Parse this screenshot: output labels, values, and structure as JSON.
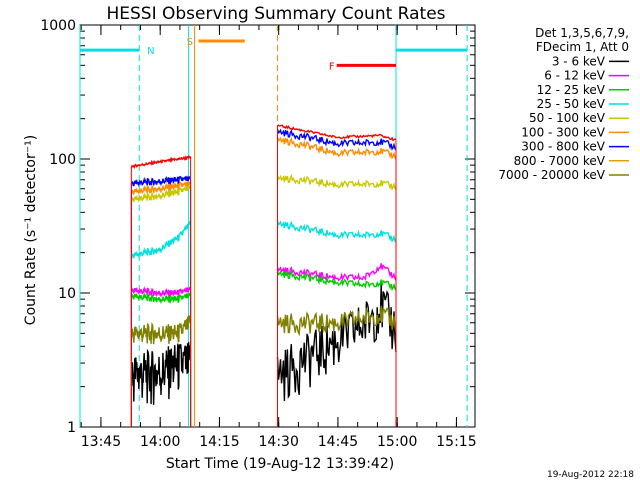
{
  "chart_data": {
    "type": "line",
    "title": "HESSI Observing Summary Count Rates",
    "xlabel": "Start Time (19-Aug-12 13:39:42)",
    "ylabel": "Count Rate (s⁻¹ detector⁻¹)",
    "x_unit": "minutes after 13:39:42",
    "xlim": [
      0,
      100
    ],
    "ylim": [
      1,
      1000
    ],
    "y_scale": "log",
    "x_ticks": [
      {
        "label": "13:45",
        "x": 5.3
      },
      {
        "label": "14:00",
        "x": 20.3
      },
      {
        "label": "14:15",
        "x": 35.3
      },
      {
        "label": "14:30",
        "x": 50.3
      },
      {
        "label": "14:45",
        "x": 65.3
      },
      {
        "label": "15:00",
        "x": 80.3
      },
      {
        "label": "15:15",
        "x": 95.3
      }
    ],
    "y_ticks": [
      {
        "label": "1",
        "y": 1
      },
      {
        "label": "10",
        "y": 10
      },
      {
        "label": "100",
        "y": 100
      },
      {
        "label": "1000",
        "y": 1000
      }
    ],
    "legend": {
      "header": [
        "Det 1,3,5,6,7,9,",
        "FDecim 1, Att 0"
      ],
      "placement": "right"
    },
    "segments": [
      [
        13,
        28
      ],
      [
        50,
        80
      ]
    ],
    "series": [
      {
        "name": "3 - 6 keV",
        "color": "#000000",
        "values": [
          [
            13,
            2.5
          ],
          [
            20,
            2.6
          ],
          [
            25,
            3.0
          ],
          [
            28,
            3.0
          ],
          [
            50,
            2.5
          ],
          [
            58,
            3.5
          ],
          [
            65,
            4.5
          ],
          [
            72,
            6.0
          ],
          [
            76,
            8.5
          ],
          [
            80,
            5.5
          ]
        ]
      },
      {
        "name": "6 - 12 keV",
        "color": "#ff00ff",
        "values": [
          [
            13,
            10.5
          ],
          [
            20,
            10.0
          ],
          [
            25,
            10.0
          ],
          [
            28,
            10.5
          ],
          [
            50,
            15.0
          ],
          [
            58,
            14.0
          ],
          [
            65,
            13.0
          ],
          [
            72,
            13.0
          ],
          [
            76,
            16.0
          ],
          [
            80,
            13.0
          ]
        ]
      },
      {
        "name": "12 - 25 keV",
        "color": "#00cc00",
        "values": [
          [
            13,
            9.5
          ],
          [
            20,
            9.0
          ],
          [
            25,
            9.0
          ],
          [
            28,
            9.5
          ],
          [
            50,
            14.0
          ],
          [
            58,
            13.0
          ],
          [
            65,
            12.0
          ],
          [
            72,
            11.5
          ],
          [
            76,
            12.0
          ],
          [
            80,
            11.0
          ]
        ]
      },
      {
        "name": "25 - 50 keV",
        "color": "#00e0e0",
        "values": [
          [
            13,
            19.0
          ],
          [
            20,
            21.0
          ],
          [
            25,
            26.0
          ],
          [
            28,
            33.0
          ],
          [
            50,
            33.0
          ],
          [
            58,
            30.0
          ],
          [
            65,
            27.0
          ],
          [
            72,
            27.0
          ],
          [
            76,
            28.0
          ],
          [
            80,
            25.0
          ]
        ]
      },
      {
        "name": "50 - 100 keV",
        "color": "#c8c800",
        "values": [
          [
            13,
            50.0
          ],
          [
            20,
            53.0
          ],
          [
            25,
            57.0
          ],
          [
            28,
            60.0
          ],
          [
            50,
            72.0
          ],
          [
            58,
            69.0
          ],
          [
            65,
            64.0
          ],
          [
            72,
            65.0
          ],
          [
            76,
            66.0
          ],
          [
            80,
            62.0
          ]
        ]
      },
      {
        "name": "100 - 300 keV",
        "color": "#ff8c00",
        "values": [
          [
            13,
            57.0
          ],
          [
            20,
            60.0
          ],
          [
            25,
            63.0
          ],
          [
            28,
            64.0
          ],
          [
            50,
            140.0
          ],
          [
            58,
            125.0
          ],
          [
            65,
            110.0
          ],
          [
            72,
            112.0
          ],
          [
            76,
            115.0
          ],
          [
            80,
            105.0
          ]
        ]
      },
      {
        "name": "300 - 800 keV",
        "color": "#0000ff",
        "values": [
          [
            13,
            66.0
          ],
          [
            20,
            68.0
          ],
          [
            25,
            70.0
          ],
          [
            28,
            70.0
          ],
          [
            50,
            160.0
          ],
          [
            58,
            145.0
          ],
          [
            65,
            130.0
          ],
          [
            72,
            132.0
          ],
          [
            76,
            135.0
          ],
          [
            80,
            122.0
          ]
        ]
      },
      {
        "name": "800 - 7000 keV",
        "color": "#e0a000",
        "values": []
      },
      {
        "name": "7000 - 20000 keV",
        "color": "#808000",
        "values": [
          [
            13,
            5.0
          ],
          [
            20,
            5.0
          ],
          [
            25,
            5.0
          ],
          [
            28,
            6.0
          ],
          [
            50,
            6.0
          ],
          [
            58,
            6.0
          ],
          [
            65,
            6.0
          ],
          [
            72,
            6.5
          ],
          [
            76,
            7.0
          ],
          [
            80,
            6.0
          ]
        ]
      }
    ],
    "red_series_extra": {
      "color": "#ff0000",
      "values": [
        [
          13,
          88
        ],
        [
          20,
          95
        ],
        [
          25,
          100
        ],
        [
          28,
          103
        ],
        [
          50,
          178
        ],
        [
          58,
          160
        ],
        [
          65,
          145
        ],
        [
          72,
          148
        ],
        [
          76,
          150
        ],
        [
          80,
          138
        ]
      ]
    },
    "flags": [
      {
        "label": "N",
        "color": "#00e0e0",
        "x_start": 0,
        "x_end": 15,
        "y": 650,
        "x_text": 17
      },
      {
        "label": "N",
        "color": "#00e0e0",
        "x_start": 80,
        "x_end": 98,
        "y": 650,
        "x_text": null
      },
      {
        "label": "S",
        "color": "#ff8c00",
        "x_start": 30,
        "x_end": 41.7,
        "y": 760,
        "x_text": 27
      },
      {
        "label": "F",
        "color": "#ff0000",
        "x_start": 65,
        "x_end": 80,
        "y": 500,
        "x_text": 63
      }
    ],
    "vertical_lines": [
      {
        "x": 0,
        "color": "#00e0e0",
        "style": "solid"
      },
      {
        "x": 15,
        "color": "#00e0e0",
        "style": "dashed"
      },
      {
        "x": 27.5,
        "color": "#00e0e0",
        "style": "solid"
      },
      {
        "x": 29,
        "color": "#ff8c00",
        "style": "solid"
      },
      {
        "x": 50,
        "color": "#ff8c00",
        "style": "dashed"
      },
      {
        "x": 80,
        "color": "#00e0e0",
        "style": "solid"
      },
      {
        "x": 98,
        "color": "#00e0e0",
        "style": "dashed"
      }
    ],
    "footer": "19-Aug-2012 22:18"
  }
}
